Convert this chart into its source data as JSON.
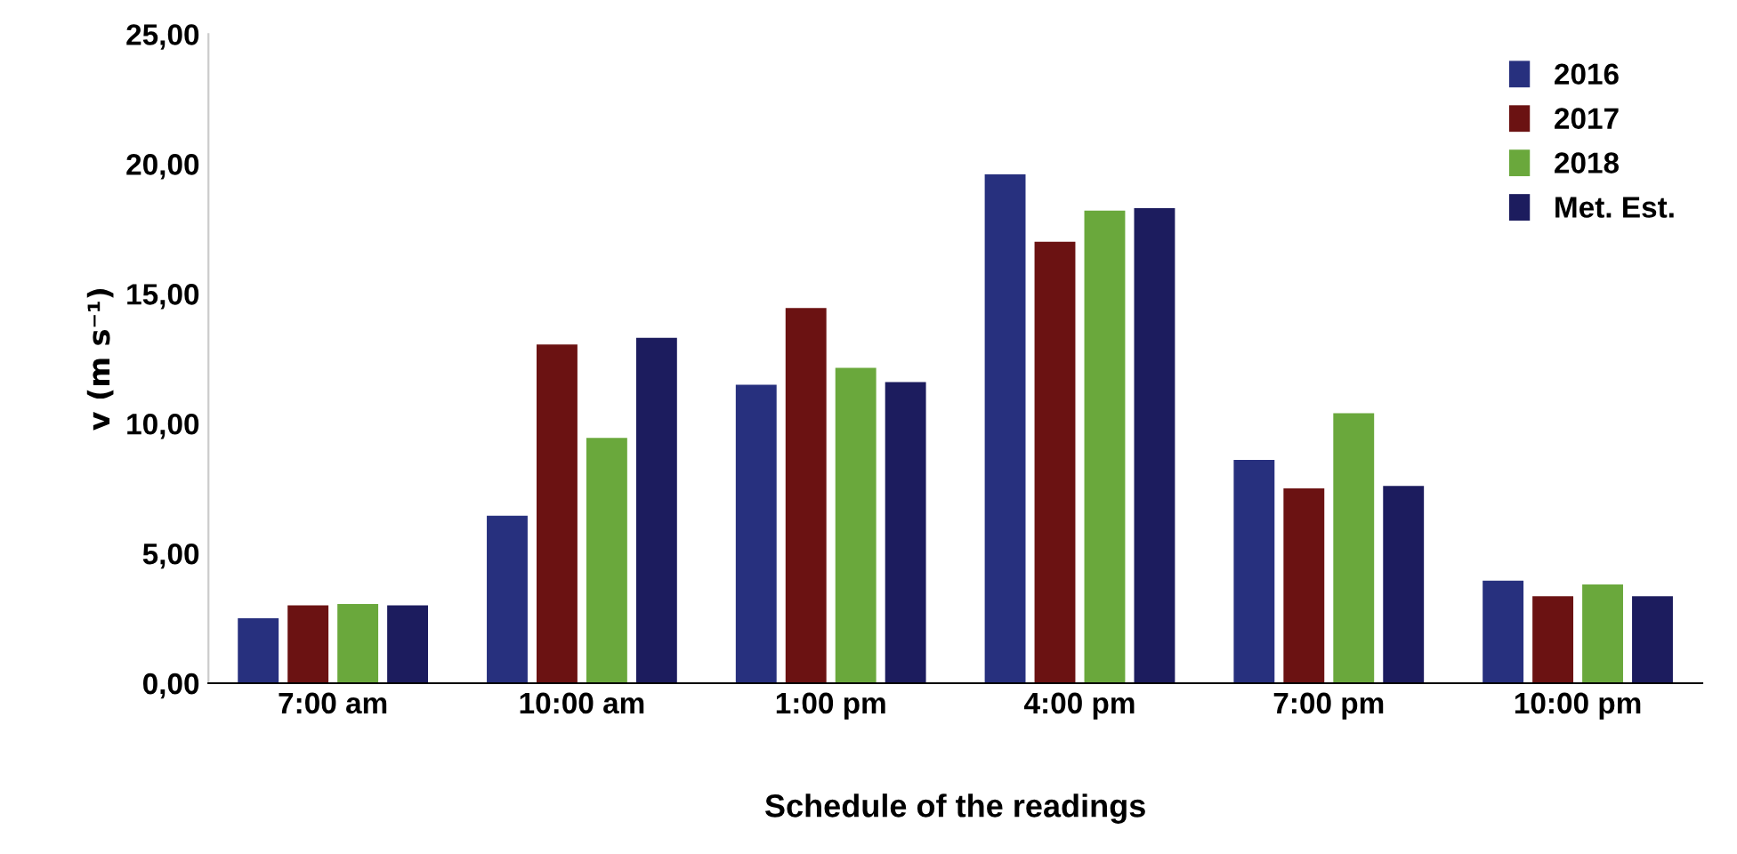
{
  "chart_data": {
    "type": "bar",
    "xlabel": "Schedule of the readings",
    "ylabel": "v (m s⁻¹)",
    "categories": [
      "7:00 am",
      "10:00 am",
      "1:00 pm",
      "4:00 pm",
      "7:00 pm",
      "10:00 pm"
    ],
    "series": [
      {
        "name": "2016",
        "color": "#27307e",
        "values": [
          2.5,
          6.45,
          11.5,
          19.6,
          8.6,
          3.95
        ]
      },
      {
        "name": "2017",
        "color": "#6b1212",
        "values": [
          3.0,
          13.05,
          14.45,
          17.0,
          7.5,
          3.35
        ]
      },
      {
        "name": "2018",
        "color": "#6aa83c",
        "values": [
          3.05,
          9.45,
          12.15,
          18.2,
          10.4,
          3.8
        ]
      },
      {
        "name": "Met. Est.",
        "color": "#1c1c5e",
        "values": [
          3.0,
          13.3,
          11.6,
          18.3,
          7.6,
          3.35
        ]
      }
    ],
    "ylim": [
      0,
      25
    ],
    "yticks": [
      {
        "value": 0,
        "label": "0,00"
      },
      {
        "value": 5,
        "label": "5,00"
      },
      {
        "value": 10,
        "label": "10,00"
      },
      {
        "value": 15,
        "label": "15,00"
      },
      {
        "value": 20,
        "label": "20,00"
      },
      {
        "value": 25,
        "label": "25,00"
      }
    ],
    "grid": false,
    "legend": "top right"
  }
}
